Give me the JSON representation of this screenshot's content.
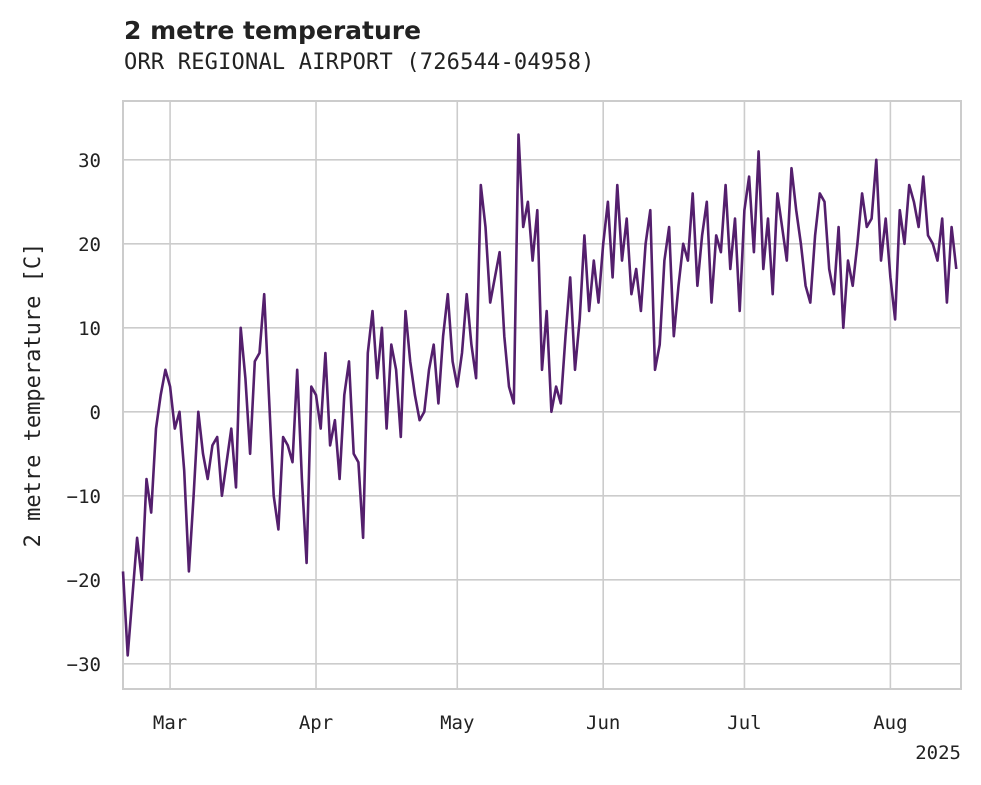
{
  "chart_data": {
    "type": "line",
    "title": "2 metre temperature",
    "subtitle": "ORR REGIONAL AIRPORT (726544-04958)",
    "xlabel": "",
    "ylabel": "2 metre temperature [C]",
    "year_label": "2025",
    "xlim": [
      "2025-02-19",
      "2025-08-16"
    ],
    "ylim": [
      -33,
      37
    ],
    "grid": true,
    "y_ticks": [
      -30,
      -20,
      -10,
      0,
      10,
      20,
      30
    ],
    "x_ticks": [
      {
        "date": "2025-03-01",
        "label": "Mar"
      },
      {
        "date": "2025-04-01",
        "label": "Apr"
      },
      {
        "date": "2025-05-01",
        "label": "May"
      },
      {
        "date": "2025-06-01",
        "label": "Jun"
      },
      {
        "date": "2025-07-01",
        "label": "Jul"
      },
      {
        "date": "2025-08-01",
        "label": "Aug"
      }
    ],
    "series": [
      {
        "color": "#541f6d",
        "x": [
          "2025-02-19",
          "2025-02-20",
          "2025-02-21",
          "2025-02-22",
          "2025-02-23",
          "2025-02-24",
          "2025-02-25",
          "2025-02-26",
          "2025-02-27",
          "2025-02-28",
          "2025-03-01",
          "2025-03-02",
          "2025-03-03",
          "2025-03-04",
          "2025-03-05",
          "2025-03-06",
          "2025-03-07",
          "2025-03-08",
          "2025-03-09",
          "2025-03-10",
          "2025-03-11",
          "2025-03-12",
          "2025-03-13",
          "2025-03-14",
          "2025-03-15",
          "2025-03-16",
          "2025-03-17",
          "2025-03-18",
          "2025-03-19",
          "2025-03-20",
          "2025-03-21",
          "2025-03-22",
          "2025-03-23",
          "2025-03-24",
          "2025-03-25",
          "2025-03-26",
          "2025-03-27",
          "2025-03-28",
          "2025-03-29",
          "2025-03-30",
          "2025-03-31",
          "2025-04-01",
          "2025-04-02",
          "2025-04-03",
          "2025-04-04",
          "2025-04-05",
          "2025-04-06",
          "2025-04-07",
          "2025-04-08",
          "2025-04-09",
          "2025-04-10",
          "2025-04-11",
          "2025-04-12",
          "2025-04-13",
          "2025-04-14",
          "2025-04-15",
          "2025-04-16",
          "2025-04-17",
          "2025-04-18",
          "2025-04-19",
          "2025-04-20",
          "2025-04-21",
          "2025-04-22",
          "2025-04-23",
          "2025-04-24",
          "2025-04-25",
          "2025-04-26",
          "2025-04-27",
          "2025-04-28",
          "2025-04-29",
          "2025-04-30",
          "2025-05-01",
          "2025-05-02",
          "2025-05-03",
          "2025-05-04",
          "2025-05-05",
          "2025-05-06",
          "2025-05-07",
          "2025-05-08",
          "2025-05-09",
          "2025-05-10",
          "2025-05-11",
          "2025-05-12",
          "2025-05-13",
          "2025-05-14",
          "2025-05-15",
          "2025-05-16",
          "2025-05-17",
          "2025-05-18",
          "2025-05-19",
          "2025-05-20",
          "2025-05-21",
          "2025-05-22",
          "2025-05-23",
          "2025-05-24",
          "2025-05-25",
          "2025-05-26",
          "2025-05-27",
          "2025-05-28",
          "2025-05-29",
          "2025-05-30",
          "2025-05-31",
          "2025-06-01",
          "2025-06-02",
          "2025-06-03",
          "2025-06-04",
          "2025-06-05",
          "2025-06-06",
          "2025-06-07",
          "2025-06-08",
          "2025-06-09",
          "2025-06-10",
          "2025-06-11",
          "2025-06-12",
          "2025-06-13",
          "2025-06-14",
          "2025-06-15",
          "2025-06-16",
          "2025-06-17",
          "2025-06-18",
          "2025-06-19",
          "2025-06-20",
          "2025-06-21",
          "2025-06-22",
          "2025-06-23",
          "2025-06-24",
          "2025-06-25",
          "2025-06-26",
          "2025-06-27",
          "2025-06-28",
          "2025-06-29",
          "2025-06-30",
          "2025-07-01",
          "2025-07-02",
          "2025-07-03",
          "2025-07-04",
          "2025-07-05",
          "2025-07-06",
          "2025-07-07",
          "2025-07-08",
          "2025-07-09",
          "2025-07-10",
          "2025-07-11",
          "2025-07-12",
          "2025-07-13",
          "2025-07-14",
          "2025-07-15",
          "2025-07-16",
          "2025-07-17",
          "2025-07-18",
          "2025-07-19",
          "2025-07-20",
          "2025-07-21",
          "2025-07-22",
          "2025-07-23",
          "2025-07-24",
          "2025-07-25",
          "2025-07-26",
          "2025-07-27",
          "2025-07-28",
          "2025-07-29",
          "2025-07-30",
          "2025-07-31",
          "2025-08-01",
          "2025-08-02",
          "2025-08-03",
          "2025-08-04",
          "2025-08-05",
          "2025-08-06",
          "2025-08-07",
          "2025-08-08",
          "2025-08-09",
          "2025-08-10",
          "2025-08-11",
          "2025-08-12",
          "2025-08-13",
          "2025-08-14",
          "2025-08-15"
        ],
        "y": [
          -19,
          -29,
          -22,
          -15,
          -20,
          -8,
          -12,
          -2,
          2,
          5,
          3,
          -2,
          0,
          -7,
          -19,
          -10,
          0,
          -5,
          -8,
          -4,
          -3,
          -10,
          -6,
          -2,
          -9,
          10,
          4,
          -5,
          6,
          7,
          14,
          2,
          -10,
          -14,
          -3,
          -4,
          -6,
          5,
          -8,
          -18,
          3,
          2,
          -2,
          7,
          -4,
          -1,
          -8,
          2,
          6,
          -5,
          -6,
          -15,
          7,
          12,
          4,
          10,
          -2,
          8,
          5,
          -3,
          12,
          6,
          2,
          -1,
          0,
          5,
          8,
          1,
          9,
          14,
          6,
          3,
          7,
          14,
          8,
          4,
          27,
          22,
          13,
          16,
          19,
          9,
          3,
          1,
          33,
          22,
          25,
          18,
          24,
          5,
          12,
          0,
          3,
          1,
          9,
          16,
          5,
          11,
          21,
          12,
          18,
          13,
          20,
          25,
          16,
          27,
          18,
          23,
          14,
          17,
          12,
          20,
          24,
          5,
          8,
          18,
          22,
          9,
          15,
          20,
          18,
          26,
          15,
          21,
          25,
          13,
          21,
          19,
          27,
          17,
          23,
          12,
          24,
          28,
          19,
          31,
          17,
          23,
          14,
          26,
          22,
          18,
          29,
          24,
          20,
          15,
          13,
          21,
          26,
          25,
          17,
          14,
          22,
          10,
          18,
          15,
          20,
          26,
          22,
          23,
          30,
          18,
          23,
          16,
          11,
          24,
          20,
          27,
          25,
          22,
          28,
          21,
          20,
          18,
          23,
          13,
          22,
          17
        ]
      }
    ]
  }
}
